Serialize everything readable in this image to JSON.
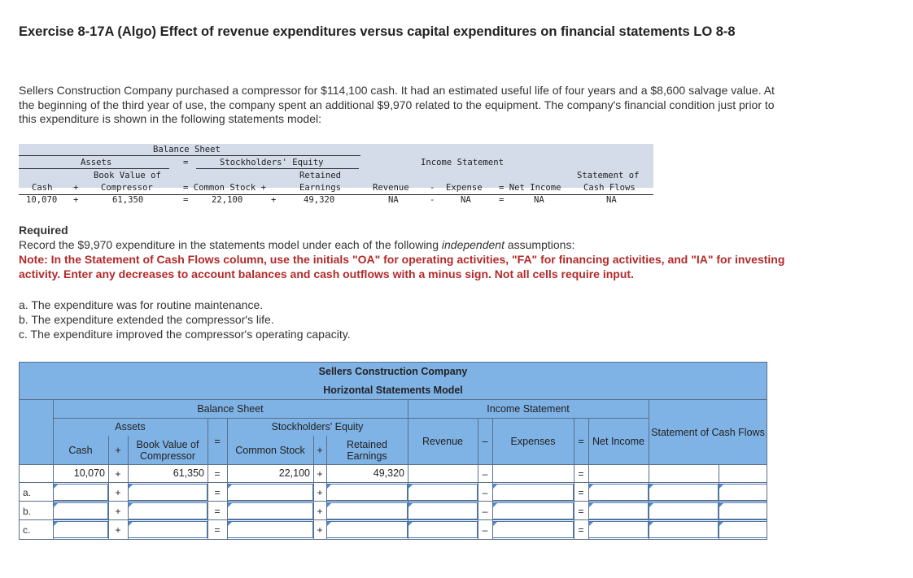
{
  "title": "Exercise 8-17A (Algo) Effect of revenue expenditures versus capital expenditures on financial statements LO 8-8",
  "intro": "Sellers Construction Company purchased a compressor for $114,100 cash. It had an estimated useful life of four years and a $8,600 salvage value. At the beginning of the third year of use, the company spent an additional $9,970 related to the equipment. The company's financial condition just prior to this expenditure is shown in the following statements model:",
  "model": {
    "balance_sheet": "Balance Sheet",
    "assets": "Assets",
    "eq_sign": "=",
    "se": "Stockholders' Equity",
    "income_statement": "Income Statement",
    "book_value_of": "Book Value of",
    "retained": "Retained",
    "statement_of": "Statement of",
    "cash": "Cash",
    "plus": "+",
    "compressor": "Compressor",
    "common_stock": "= Common Stock +",
    "earnings": "Earnings",
    "revenue": "Revenue",
    "minus": "-",
    "expense": "Expense",
    "net_income": "= Net Income",
    "cash_flows": "Cash Flows",
    "cash_val": "10,070",
    "compressor_val": "61,350",
    "cs_val": "22,100",
    "re_val": "49,320",
    "na": "NA"
  },
  "required": {
    "heading": "Required",
    "line_pre": "Record the $9,970 expenditure in the statements model under each of the following ",
    "line_italic": "independent",
    "line_post": " assumptions:",
    "note": "Note: In the Statement of Cash Flows column, use the initials \"OA\" for operating activities, \"FA\" for financing activities, and \"IA\" for investing activity. Enter any decreases to account balances and cash outflows with a minus sign. Not all cells require input."
  },
  "cases": [
    "a. The expenditure was for routine maintenance.",
    "b. The expenditure extended the compressor's life.",
    "c. The expenditure improved the compressor's operating capacity."
  ],
  "table": {
    "company": "Sellers Construction Company",
    "model_name": "Horizontal Statements Model",
    "balance_sheet": "Balance Sheet",
    "income_statement": "Income Statement",
    "assets": "Assets",
    "se": "Stockholders' Equity",
    "cash": "Cash",
    "plus": "+",
    "equals": "=",
    "minus": "–",
    "book_value": "Book Value of Compressor",
    "common_stock": "Common Stock",
    "retained_earnings": "Retained Earnings",
    "revenue": "Revenue",
    "expenses": "Expenses",
    "net_income": "Net Income",
    "scf": "Statement of Cash Flows",
    "start": {
      "cash": "10,070",
      "bv": "61,350",
      "cs": "22,100",
      "re": "49,320"
    },
    "rows": [
      "a.",
      "b.",
      "c."
    ]
  }
}
